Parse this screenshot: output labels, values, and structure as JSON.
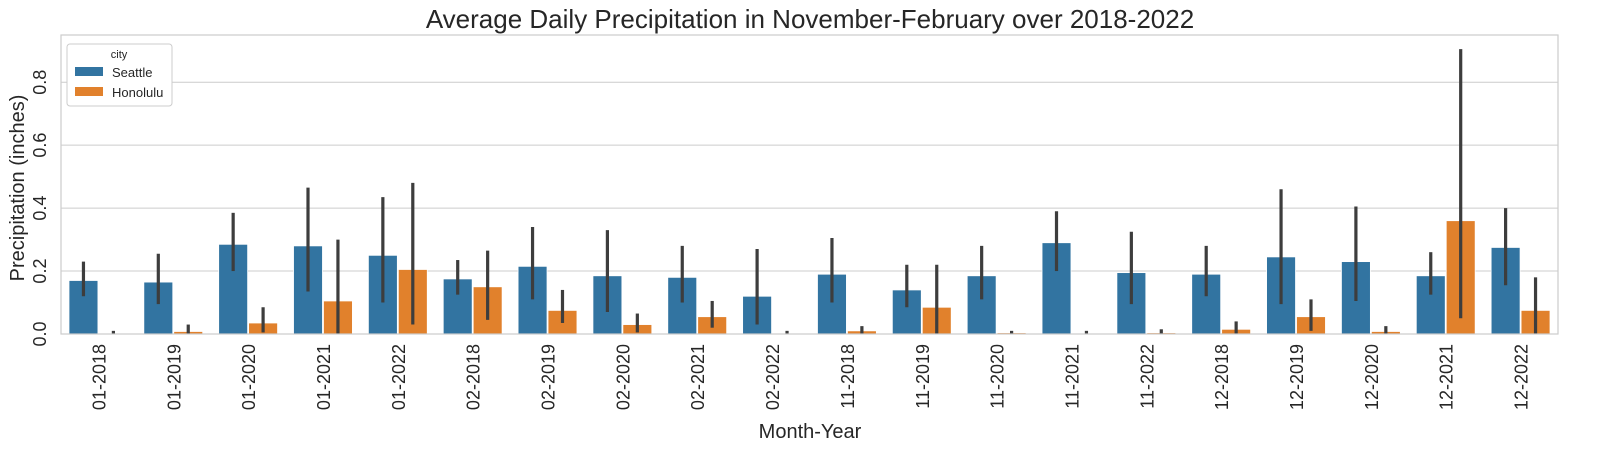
{
  "chart_data": {
    "type": "bar",
    "title": "Average Daily Precipitation in November-February over 2018-2022",
    "xlabel": "Month-Year",
    "ylabel": "Precipitation (inches)",
    "ylim": [
      0,
      0.95
    ],
    "yticks": [
      "0.0",
      "0.2",
      "0.4",
      "0.6",
      "0.8"
    ],
    "grid": true,
    "legend": {
      "title": "city",
      "placement": "top-left"
    },
    "categories": [
      "01-2018",
      "01-2019",
      "01-2020",
      "01-2021",
      "01-2022",
      "02-2018",
      "02-2019",
      "02-2020",
      "02-2021",
      "02-2022",
      "11-2018",
      "11-2019",
      "11-2020",
      "11-2021",
      "11-2022",
      "12-2018",
      "12-2019",
      "12-2020",
      "12-2021",
      "12-2022"
    ],
    "series": [
      {
        "name": "Seattle",
        "color": "#3274a1",
        "values": [
          0.17,
          0.165,
          0.285,
          0.28,
          0.25,
          0.175,
          0.215,
          0.185,
          0.18,
          0.12,
          0.19,
          0.14,
          0.185,
          0.29,
          0.195,
          0.19,
          0.245,
          0.23,
          0.185,
          0.275
        ],
        "ci_low": [
          0.12,
          0.095,
          0.2,
          0.135,
          0.1,
          0.125,
          0.11,
          0.07,
          0.1,
          0.03,
          0.1,
          0.085,
          0.11,
          0.2,
          0.095,
          0.12,
          0.095,
          0.105,
          0.125,
          0.155
        ],
        "ci_high": [
          0.23,
          0.255,
          0.385,
          0.465,
          0.435,
          0.235,
          0.34,
          0.33,
          0.28,
          0.27,
          0.305,
          0.22,
          0.28,
          0.39,
          0.325,
          0.28,
          0.46,
          0.405,
          0.26,
          0.4
        ]
      },
      {
        "name": "Honolulu",
        "color": "#e1812c",
        "values": [
          0.002,
          0.008,
          0.035,
          0.105,
          0.205,
          0.15,
          0.075,
          0.03,
          0.055,
          0.002,
          0.01,
          0.085,
          0.004,
          0.002,
          0.004,
          0.015,
          0.055,
          0.008,
          0.36,
          0.075
        ],
        "ci_low": [
          0.0,
          0.0,
          0.005,
          0.0,
          0.03,
          0.045,
          0.035,
          0.005,
          0.02,
          0.0,
          0.0,
          0.0,
          0.0,
          0.0,
          0.0,
          0.0,
          0.01,
          0.0,
          0.05,
          0.0
        ],
        "ci_high": [
          0.01,
          0.03,
          0.085,
          0.3,
          0.48,
          0.265,
          0.14,
          0.065,
          0.105,
          0.01,
          0.025,
          0.22,
          0.01,
          0.01,
          0.015,
          0.04,
          0.11,
          0.025,
          0.905,
          0.18
        ]
      }
    ]
  }
}
